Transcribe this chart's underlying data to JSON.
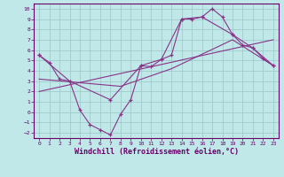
{
  "background_color": "#c0e8e8",
  "grid_color": "#a0cccc",
  "line_color": "#883388",
  "xlabel": "Windchill (Refroidissement éolien,°C)",
  "xlabel_fontsize": 6.0,
  "ylabel_ticks": [
    -2,
    -1,
    0,
    1,
    2,
    3,
    4,
    5,
    6,
    7,
    8,
    9,
    10
  ],
  "xlabel_ticks": [
    0,
    1,
    2,
    3,
    4,
    5,
    6,
    7,
    8,
    9,
    10,
    11,
    12,
    13,
    14,
    15,
    16,
    17,
    18,
    19,
    20,
    21,
    22,
    23
  ],
  "ylim": [
    -2.5,
    10.5
  ],
  "xlim": [
    -0.5,
    23.5
  ],
  "line1_x": [
    0,
    1,
    2,
    3,
    4,
    5,
    6,
    7,
    8,
    9,
    10,
    11,
    12,
    13,
    14,
    15,
    16,
    17,
    18,
    19,
    20,
    21,
    22,
    23
  ],
  "line1_y": [
    5.5,
    4.8,
    3.2,
    3.0,
    0.2,
    -1.2,
    -1.7,
    -2.2,
    -0.2,
    1.2,
    4.5,
    4.4,
    5.1,
    5.5,
    9.0,
    9.0,
    9.2,
    10.0,
    9.2,
    7.5,
    6.5,
    6.2,
    5.2,
    4.5
  ],
  "line2_x": [
    0,
    3,
    7,
    10,
    12,
    14,
    16,
    19,
    21,
    23
  ],
  "line2_y": [
    5.5,
    3.0,
    1.2,
    4.5,
    5.1,
    9.0,
    9.2,
    7.5,
    6.2,
    4.5
  ],
  "line3_x": [
    0,
    8,
    13,
    19,
    23
  ],
  "line3_y": [
    3.2,
    2.5,
    4.2,
    7.0,
    4.5
  ],
  "line4_x": [
    0,
    23
  ],
  "line4_y": [
    2.0,
    7.0
  ],
  "figsize": [
    3.2,
    2.0
  ],
  "dpi": 100
}
